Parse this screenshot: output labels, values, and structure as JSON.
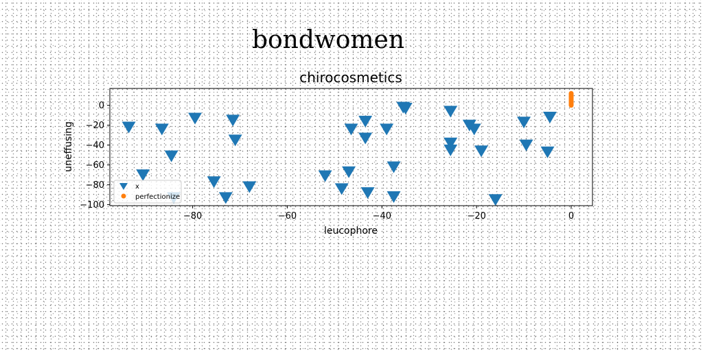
{
  "figure": {
    "suptitle": "bondwomen"
  },
  "chart_data": {
    "type": "scatter",
    "title": "chirocosmetics",
    "xlabel": "leucophore",
    "ylabel": "uneffusing",
    "xlim": [
      -97.5,
      4.5
    ],
    "ylim": [
      -101,
      17
    ],
    "xticks": [
      -80,
      -60,
      -40,
      -20,
      0
    ],
    "yticks": [
      0,
      -20,
      -40,
      -60,
      -80,
      -100
    ],
    "xtick_labels": [
      "−80",
      "−60",
      "−40",
      "−20",
      "0"
    ],
    "ytick_labels": [
      "0",
      "−20",
      "−40",
      "−60",
      "−80",
      "−100"
    ],
    "grid": false,
    "legend": {
      "placement": "lower-left"
    },
    "series": [
      {
        "name": "x",
        "marker": "triangle-down",
        "color": "#1f77b4",
        "points": [
          [
            -93.5,
            -22
          ],
          [
            -86.5,
            -24
          ],
          [
            -84.5,
            -51
          ],
          [
            -90.5,
            -70
          ],
          [
            -84,
            -93
          ],
          [
            -79.5,
            -13
          ],
          [
            -75.5,
            -77
          ],
          [
            -73,
            -93
          ],
          [
            -71.5,
            -15
          ],
          [
            -71,
            -35
          ],
          [
            -68,
            -82
          ],
          [
            -52,
            -71
          ],
          [
            -48.5,
            -84
          ],
          [
            -47,
            -67
          ],
          [
            -46.5,
            -24
          ],
          [
            -43.5,
            -16
          ],
          [
            -43.5,
            -33
          ],
          [
            -43,
            -88
          ],
          [
            -39,
            -24
          ],
          [
            -37.5,
            -62
          ],
          [
            -37.5,
            -92
          ],
          [
            -35.5,
            -2
          ],
          [
            -35,
            -3
          ],
          [
            -25.5,
            -6
          ],
          [
            -25.5,
            -38
          ],
          [
            -25.5,
            -45
          ],
          [
            -21.5,
            -20
          ],
          [
            -20.5,
            -24
          ],
          [
            -19,
            -46
          ],
          [
            -16,
            -95
          ],
          [
            -10,
            -17
          ],
          [
            -9.5,
            -40
          ],
          [
            -5,
            -47
          ],
          [
            -4.5,
            -12
          ]
        ]
      },
      {
        "name": "perfectionize",
        "marker": "circle",
        "color": "#ff7f0e",
        "points": [
          [
            0,
            12
          ],
          [
            0,
            11
          ],
          [
            0,
            10
          ],
          [
            0,
            9
          ],
          [
            0,
            8
          ],
          [
            0,
            7
          ],
          [
            0,
            6
          ],
          [
            0,
            5
          ],
          [
            0,
            4
          ],
          [
            0,
            3
          ],
          [
            0,
            2
          ],
          [
            0,
            1
          ],
          [
            0,
            0
          ]
        ]
      }
    ]
  }
}
